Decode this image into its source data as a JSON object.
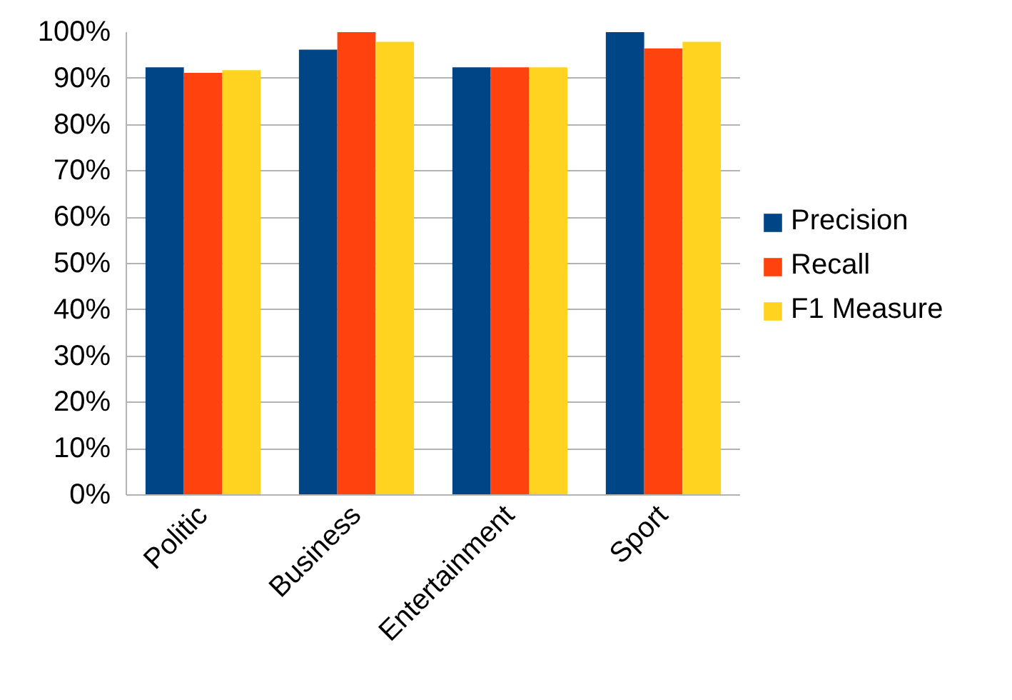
{
  "chart_data": {
    "type": "bar",
    "categories": [
      "Politic",
      "Business",
      "Entertainment",
      "Sport"
    ],
    "series": [
      {
        "name": "Precision",
        "color": "#004586",
        "values": [
          92.4,
          96.2,
          92.4,
          100
        ]
      },
      {
        "name": "Recall",
        "color": "#ff420e",
        "values": [
          91.2,
          100,
          92.4,
          96.5
        ]
      },
      {
        "name": "F1 Measure",
        "color": "#ffd320",
        "values": [
          91.8,
          97.9,
          92.4,
          97.9
        ]
      }
    ],
    "ylim": [
      0,
      100
    ],
    "yticks": [
      {
        "value": 0,
        "label": "0%"
      },
      {
        "value": 10,
        "label": "10%"
      },
      {
        "value": 20,
        "label": "20%"
      },
      {
        "value": 30,
        "label": "30%"
      },
      {
        "value": 40,
        "label": "40%"
      },
      {
        "value": 50,
        "label": "50%"
      },
      {
        "value": 60,
        "label": "60%"
      },
      {
        "value": 70,
        "label": "70%"
      },
      {
        "value": 80,
        "label": "80%"
      },
      {
        "value": 90,
        "label": "90%"
      },
      {
        "value": 100,
        "label": "100%"
      }
    ],
    "grid": "y",
    "legend": "right"
  }
}
